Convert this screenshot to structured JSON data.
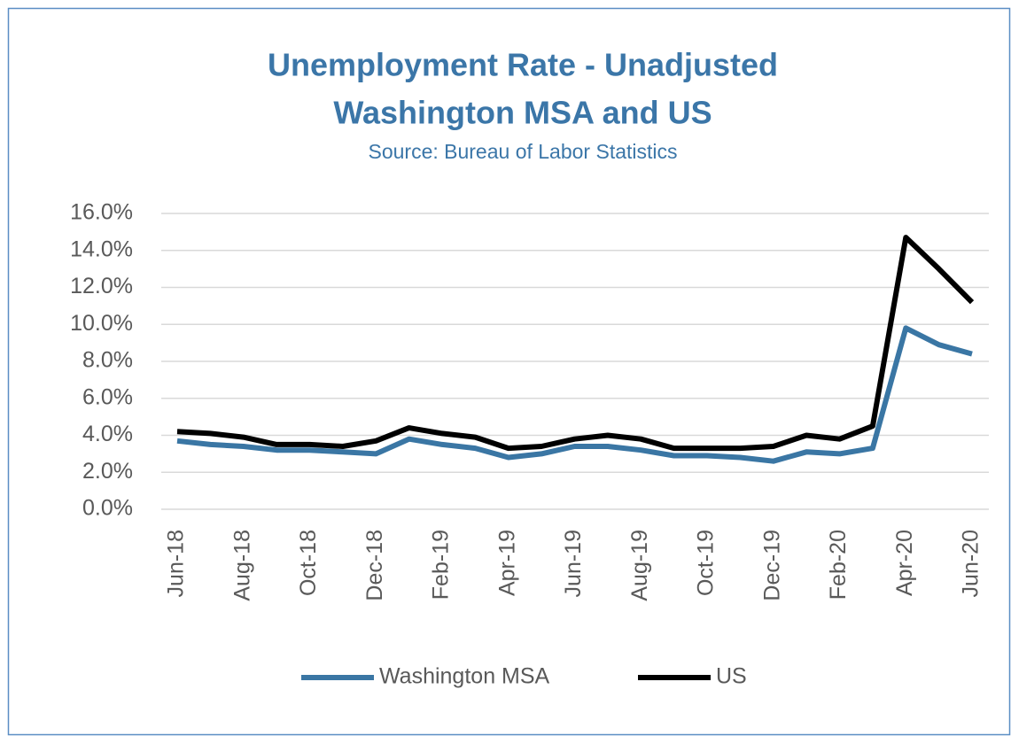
{
  "chart_data": {
    "type": "line",
    "title": [
      "Unemployment Rate - Unadjusted",
      "Washington MSA and US"
    ],
    "subtitle": "Source: Bureau of Labor Statistics",
    "categories": [
      "Jun-18",
      null,
      "Aug-18",
      null,
      "Oct-18",
      null,
      "Dec-18",
      null,
      "Feb-19",
      null,
      "Apr-19",
      null,
      "Jun-19",
      null,
      "Aug-19",
      null,
      "Oct-19",
      null,
      "Dec-19",
      null,
      "Feb-20",
      null,
      "Apr-20",
      null,
      "Jun-20"
    ],
    "series": [
      {
        "name": "Washington MSA",
        "color": "#3a76a4",
        "values": [
          3.7,
          3.5,
          3.4,
          3.2,
          3.2,
          3.1,
          3.0,
          3.8,
          3.5,
          3.3,
          2.8,
          3.0,
          3.4,
          3.4,
          3.2,
          2.9,
          2.9,
          2.8,
          2.6,
          3.1,
          3.0,
          3.3,
          9.8,
          8.9,
          8.4
        ]
      },
      {
        "name": "US",
        "color": "#000000",
        "values": [
          4.2,
          4.1,
          3.9,
          3.5,
          3.5,
          3.4,
          3.7,
          4.4,
          4.1,
          3.9,
          3.3,
          3.4,
          3.8,
          4.0,
          3.8,
          3.3,
          3.3,
          3.3,
          3.4,
          4.0,
          3.8,
          4.5,
          14.7,
          13.0,
          11.2
        ]
      }
    ],
    "ylim": [
      0,
      16
    ],
    "yticks": [
      {
        "value": 0,
        "label": "0.0%"
      },
      {
        "value": 2,
        "label": "2.0%"
      },
      {
        "value": 4,
        "label": "4.0%"
      },
      {
        "value": 6,
        "label": "6.0%"
      },
      {
        "value": 8,
        "label": "8.0%"
      },
      {
        "value": 10,
        "label": "10.0%"
      },
      {
        "value": 12,
        "label": "12.0%"
      },
      {
        "value": 14,
        "label": "14.0%"
      },
      {
        "value": 16,
        "label": "16.0%"
      }
    ],
    "grid": true,
    "legend": "bottom"
  }
}
